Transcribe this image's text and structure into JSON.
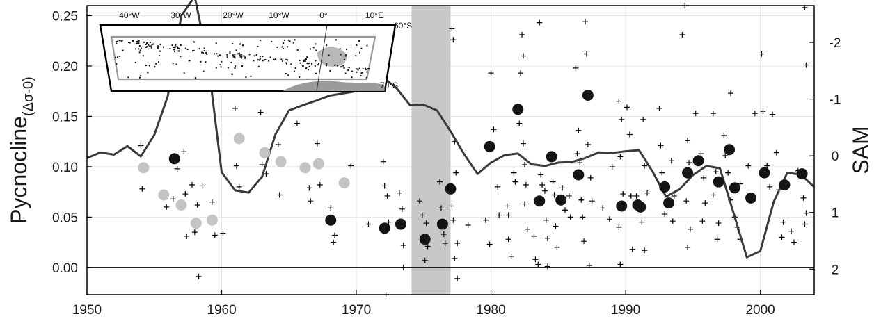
{
  "chart_data": {
    "type": "scatter",
    "title": "",
    "xlabel": "",
    "ylabel": "Pycnocline",
    "ylabel_subscript": "(Δσ-0)",
    "y2label": "SAM",
    "xlim": [
      1950,
      2004
    ],
    "ylim": [
      -0.027,
      0.26
    ],
    "y2lim": [
      2.45,
      -2.65
    ],
    "x_ticks": [
      1950,
      1960,
      1970,
      1980,
      1990,
      2000
    ],
    "y_ticks": [
      0.0,
      0.05,
      0.1,
      0.15,
      0.2,
      0.25
    ],
    "y_tick_labels": [
      "0.00",
      "0.05",
      "0.10",
      "0.15",
      "0.20",
      "0.25"
    ],
    "y2_ticks": [
      -2,
      -1,
      0,
      1,
      2
    ],
    "y2_tick_labels": [
      "-2",
      "-1",
      "0",
      "1",
      "2"
    ],
    "grid": true,
    "shaded_period": [
      1974.1,
      1977.0
    ],
    "series": [
      {
        "marker": "circle-gray",
        "points": [
          [
            1954.2,
            0.099
          ],
          [
            1955.7,
            0.072
          ],
          [
            1957.0,
            0.062
          ],
          [
            1958.1,
            0.044
          ],
          [
            1959.3,
            0.047
          ],
          [
            1961.3,
            0.128
          ],
          [
            1963.2,
            0.114
          ],
          [
            1964.4,
            0.105
          ],
          [
            1966.2,
            0.099
          ],
          [
            1967.2,
            0.103
          ],
          [
            1969.1,
            0.084
          ]
        ]
      },
      {
        "marker": "circle-black",
        "points": [
          [
            1956.5,
            0.108
          ],
          [
            1968.1,
            0.047
          ],
          [
            1972.1,
            0.039
          ],
          [
            1973.3,
            0.043
          ],
          [
            1975.1,
            0.028
          ],
          [
            1976.4,
            0.043
          ],
          [
            1977.0,
            0.078
          ],
          [
            1979.9,
            0.12
          ],
          [
            1982.0,
            0.157
          ],
          [
            1983.6,
            0.066
          ],
          [
            1984.5,
            0.11
          ],
          [
            1985.2,
            0.067
          ],
          [
            1986.5,
            0.092
          ],
          [
            1987.2,
            0.171
          ],
          [
            1989.7,
            0.061
          ],
          [
            1990.9,
            0.062
          ],
          [
            1991.1,
            0.06
          ],
          [
            1992.9,
            0.08
          ],
          [
            1993.2,
            0.064
          ],
          [
            1994.6,
            0.094
          ],
          [
            1995.4,
            0.106
          ],
          [
            1996.9,
            0.085
          ],
          [
            1997.7,
            0.117
          ],
          [
            1998.1,
            0.079
          ],
          [
            1999.3,
            0.069
          ],
          [
            2000.3,
            0.094
          ],
          [
            2001.8,
            0.082
          ],
          [
            2003.1,
            0.093
          ]
        ]
      },
      {
        "marker": "plus",
        "points": [
          [
            1954.0,
            0.121
          ],
          [
            1954.1,
            0.078
          ],
          [
            1955.9,
            0.06
          ],
          [
            1956.4,
            0.068
          ],
          [
            1956.7,
            0.098
          ],
          [
            1957.2,
            0.115
          ],
          [
            1957.3,
            0.073
          ],
          [
            1957.4,
            0.031
          ],
          [
            1957.8,
            0.082
          ],
          [
            1958.0,
            0.035
          ],
          [
            1958.2,
            0.062
          ],
          [
            1958.3,
            -0.009
          ],
          [
            1958.6,
            0.081
          ],
          [
            1959.3,
            0.065
          ],
          [
            1959.5,
            0.032
          ],
          [
            1960.1,
            0.034
          ],
          [
            1961.0,
            0.158
          ],
          [
            1961.1,
            0.101
          ],
          [
            1961.3,
            0.08
          ],
          [
            1962.9,
            0.154
          ],
          [
            1963.0,
            0.102
          ],
          [
            1963.3,
            0.093
          ],
          [
            1964.2,
            0.122
          ],
          [
            1964.3,
            0.072
          ],
          [
            1965.6,
            0.143
          ],
          [
            1966.5,
            0.079
          ],
          [
            1966.6,
            0.066
          ],
          [
            1967.1,
            0.123
          ],
          [
            1967.3,
            0.082
          ],
          [
            1968.1,
            0.059
          ],
          [
            1968.3,
            0.025
          ],
          [
            1968.4,
            0.032
          ],
          [
            1969.2,
            0.082
          ],
          [
            1969.6,
            0.101
          ],
          [
            1970.9,
            0.043
          ],
          [
            1972.0,
            0.105
          ],
          [
            1972.1,
            0.081
          ],
          [
            1972.3,
            0.071
          ],
          [
            1972.4,
            0.045
          ],
          [
            1972.2,
            -0.027
          ],
          [
            1973.2,
            0.074
          ],
          [
            1973.4,
            0.058
          ],
          [
            1973.5,
            0.022
          ],
          [
            1973.5,
            0.0
          ],
          [
            1974.7,
            0.066
          ],
          [
            1974.9,
            0.052
          ],
          [
            1975.2,
            0.044
          ],
          [
            1975.3,
            0.021
          ],
          [
            1975.1,
            0.007
          ],
          [
            1976.2,
            0.085
          ],
          [
            1976.3,
            0.059
          ],
          [
            1976.5,
            0.033
          ],
          [
            1976.6,
            0.024
          ],
          [
            1977.1,
            0.237
          ],
          [
            1977.2,
            0.226
          ],
          [
            1977.3,
            0.125
          ],
          [
            1977.4,
            0.094
          ],
          [
            1977.1,
            0.061
          ],
          [
            1977.2,
            0.047
          ],
          [
            1977.5,
            0.024
          ],
          [
            1977.3,
            0.009
          ],
          [
            1977.5,
            -0.011
          ],
          [
            1978.3,
            0.042
          ],
          [
            1979.6,
            0.047
          ],
          [
            1979.9,
            0.023
          ],
          [
            1980.0,
            0.193
          ],
          [
            1980.2,
            0.137
          ],
          [
            1980.5,
            0.08
          ],
          [
            1980.6,
            0.052
          ],
          [
            1981.2,
            0.061
          ],
          [
            1981.3,
            0.052
          ],
          [
            1981.3,
            0.028
          ],
          [
            1981.5,
            0.011
          ],
          [
            1981.7,
            0.094
          ],
          [
            1981.8,
            0.085
          ],
          [
            1982.3,
            0.231
          ],
          [
            1982.4,
            0.21
          ],
          [
            1982.2,
            0.193
          ],
          [
            1982.1,
            0.143
          ],
          [
            1982.4,
            0.123
          ],
          [
            1982.5,
            0.102
          ],
          [
            1982.6,
            0.082
          ],
          [
            1982.5,
            0.063
          ],
          [
            1982.7,
            0.038
          ],
          [
            1983.2,
            0.031
          ],
          [
            1983.3,
            0.008
          ],
          [
            1983.5,
            0.003
          ],
          [
            1983.6,
            0.243
          ],
          [
            1983.7,
            0.092
          ],
          [
            1983.8,
            0.082
          ],
          [
            1984.0,
            0.076
          ],
          [
            1984.1,
            0.047
          ],
          [
            1984.2,
            0.029
          ],
          [
            1984.2,
            0.001
          ],
          [
            1984.6,
            0.085
          ],
          [
            1984.7,
            0.072
          ],
          [
            1984.8,
            0.041
          ],
          [
            1984.9,
            0.02
          ],
          [
            1985.3,
            0.079
          ],
          [
            1985.5,
            0.057
          ],
          [
            1985.8,
            0.071
          ],
          [
            1985.9,
            0.05
          ],
          [
            1986.3,
            0.198
          ],
          [
            1986.5,
            0.136
          ],
          [
            1986.4,
            0.113
          ],
          [
            1986.6,
            0.104
          ],
          [
            1986.7,
            0.067
          ],
          [
            1986.8,
            0.05
          ],
          [
            1986.9,
            0.026
          ],
          [
            1987.0,
            0.244
          ],
          [
            1987.1,
            0.212
          ],
          [
            1987.2,
            0.122
          ],
          [
            1987.4,
            0.089
          ],
          [
            1987.5,
            0.066
          ],
          [
            1987.3,
            0.002
          ],
          [
            1988.3,
            0.059
          ],
          [
            1988.8,
            0.048
          ],
          [
            1989.0,
            0.1
          ],
          [
            1989.5,
            0.165
          ],
          [
            1989.7,
            0.147
          ],
          [
            1989.6,
            0.11
          ],
          [
            1989.8,
            0.073
          ],
          [
            1989.5,
            0.04
          ],
          [
            1989.6,
            0.003
          ],
          [
            1990.1,
            0.159
          ],
          [
            1990.3,
            0.132
          ],
          [
            1990.4,
            0.071
          ],
          [
            1990.5,
            0.018
          ],
          [
            1990.8,
            0.071
          ],
          [
            1991.3,
            0.147
          ],
          [
            1991.4,
            0.101
          ],
          [
            1991.6,
            0.074
          ],
          [
            1991.2,
            0.045
          ],
          [
            1991.4,
            0.017
          ],
          [
            1992.5,
            0.158
          ],
          [
            1992.6,
            0.121
          ],
          [
            1992.7,
            0.094
          ],
          [
            1992.9,
            0.053
          ],
          [
            1993.4,
            0.106
          ],
          [
            1993.6,
            0.071
          ],
          [
            1993.5,
            0.046
          ],
          [
            1994.4,
            0.26
          ],
          [
            1994.2,
            0.231
          ],
          [
            1994.6,
            0.126
          ],
          [
            1994.7,
            0.104
          ],
          [
            1994.5,
            0.066
          ],
          [
            1994.8,
            0.038
          ],
          [
            1994.6,
            0.02
          ],
          [
            1995.2,
            0.153
          ],
          [
            1995.6,
            0.113
          ],
          [
            1995.8,
            0.089
          ],
          [
            1995.9,
            0.064
          ],
          [
            1995.7,
            0.046
          ],
          [
            1996.5,
            0.153
          ],
          [
            1996.7,
            0.095
          ],
          [
            1996.5,
            0.072
          ],
          [
            1996.9,
            0.044
          ],
          [
            1996.8,
            0.028
          ],
          [
            1997.3,
            0.131
          ],
          [
            1997.4,
            0.111
          ],
          [
            1997.8,
            0.173
          ],
          [
            1997.6,
            0.094
          ],
          [
            1997.8,
            0.067
          ],
          [
            1998.1,
            0.05
          ],
          [
            1998.3,
            0.04
          ],
          [
            1998.5,
            0.028
          ],
          [
            1998.5,
            0.083
          ],
          [
            1999.1,
            0.101
          ],
          [
            1999.6,
            0.153
          ],
          [
            2000.1,
            0.212
          ],
          [
            2000.2,
            0.155
          ],
          [
            2000.5,
            0.101
          ],
          [
            2000.7,
            0.08
          ],
          [
            2000.9,
            0.152
          ],
          [
            2001.2,
            0.114
          ],
          [
            2001.4,
            0.077
          ],
          [
            2001.6,
            0.03
          ],
          [
            2001.7,
            0.045
          ],
          [
            2002.3,
            0.036
          ],
          [
            2002.5,
            0.025
          ],
          [
            2002.8,
            0.096
          ],
          [
            2003.3,
            0.258
          ],
          [
            2003.4,
            0.201
          ],
          [
            2003.2,
            0.069
          ],
          [
            2003.3,
            0.043
          ],
          [
            2003.4,
            0.054
          ]
        ]
      },
      {
        "name": "SAM",
        "axis": "right",
        "type": "line",
        "x": [
          1950,
          1951,
          1952,
          1953,
          1954,
          1955,
          1956,
          1957,
          1958,
          1959,
          1960,
          1961,
          1962,
          1963,
          1964,
          1965,
          1966,
          1967,
          1968,
          1969,
          1970,
          1971,
          1972,
          1973,
          1974,
          1975,
          1976,
          1977,
          1978,
          1979,
          1980,
          1981,
          1982,
          1983,
          1984,
          1985,
          1986,
          1987,
          1988,
          1989,
          1990,
          1991,
          1992,
          1993,
          1994,
          1995,
          1996,
          1997,
          1998,
          1999,
          2000,
          2001,
          2002,
          2003,
          2004
        ],
        "y": [
          0.04,
          -0.06,
          -0.02,
          -0.17,
          0.01,
          -0.37,
          -1.05,
          -2.47,
          -2.81,
          -1.65,
          0.29,
          0.61,
          0.65,
          0.37,
          -0.38,
          -0.8,
          -0.89,
          -0.97,
          -1.06,
          -1.1,
          -1.14,
          -1.2,
          -1.38,
          -1.19,
          -0.89,
          -0.9,
          -0.8,
          -0.43,
          -0.03,
          0.32,
          0.12,
          -0.01,
          -0.04,
          0.15,
          0.18,
          0.12,
          0.11,
          0.04,
          -0.06,
          -0.05,
          -0.08,
          -0.1,
          0.28,
          0.72,
          0.59,
          0.34,
          0.18,
          0.22,
          1.0,
          1.79,
          1.68,
          0.81,
          0.3,
          0.33,
          0.55
        ]
      }
    ],
    "inset": {
      "type": "map",
      "lon_labels": [
        "40°W",
        "30°W",
        "20°W",
        "10°W",
        "0°",
        "10°E"
      ],
      "lat_labels": [
        "60°S",
        "70°S"
      ]
    }
  }
}
